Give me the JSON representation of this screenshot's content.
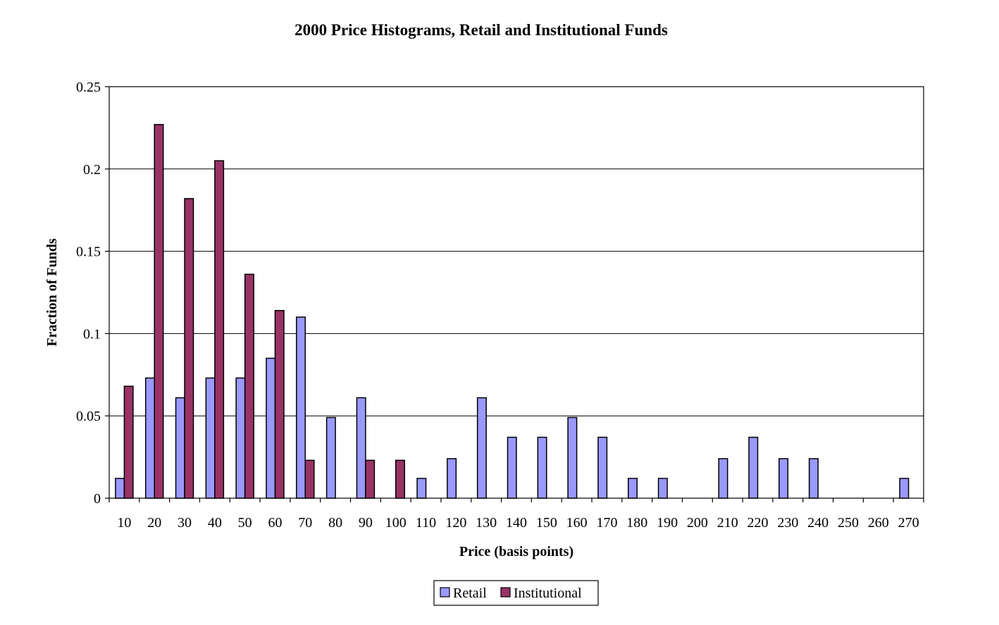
{
  "chart_data": {
    "type": "bar",
    "title": "2000 Price Histograms, Retail and Institutional Funds",
    "xlabel": "Price (basis points)",
    "ylabel": "Fraction of Funds",
    "ylim": [
      0,
      0.25
    ],
    "yticks": [
      "0",
      "0.05",
      "0.1",
      "0.15",
      "0.2",
      "0.25"
    ],
    "grid": true,
    "legend_position": "bottom-center",
    "categories": [
      "10",
      "20",
      "30",
      "40",
      "50",
      "60",
      "70",
      "80",
      "90",
      "100",
      "110",
      "120",
      "130",
      "140",
      "150",
      "160",
      "170",
      "180",
      "190",
      "200",
      "210",
      "220",
      "230",
      "240",
      "250",
      "260",
      "270"
    ],
    "series": [
      {
        "name": "Retail",
        "color": "#9999ff",
        "values": [
          0.012,
          0.073,
          0.061,
          0.073,
          0.073,
          0.085,
          0.11,
          0.049,
          0.061,
          0,
          0.012,
          0.024,
          0.061,
          0.037,
          0.037,
          0.049,
          0.037,
          0.012,
          0.012,
          0,
          0.024,
          0.037,
          0.024,
          0.024,
          0,
          0,
          0.012
        ]
      },
      {
        "name": "Institutional",
        "color": "#993366",
        "values": [
          0.068,
          0.227,
          0.182,
          0.205,
          0.136,
          0.114,
          0.023,
          0,
          0.023,
          0.023,
          0,
          0,
          0,
          0,
          0,
          0,
          0,
          0,
          0,
          0,
          0,
          0,
          0,
          0,
          0,
          0,
          0
        ]
      }
    ]
  }
}
